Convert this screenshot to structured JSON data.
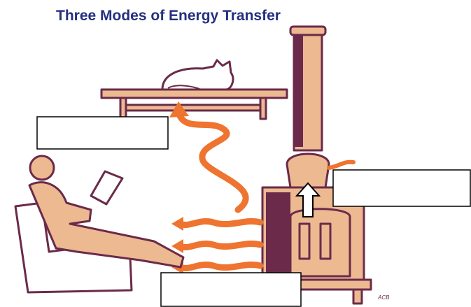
{
  "title": "Three Modes of Energy Transfer",
  "signature": "ACB"
}
